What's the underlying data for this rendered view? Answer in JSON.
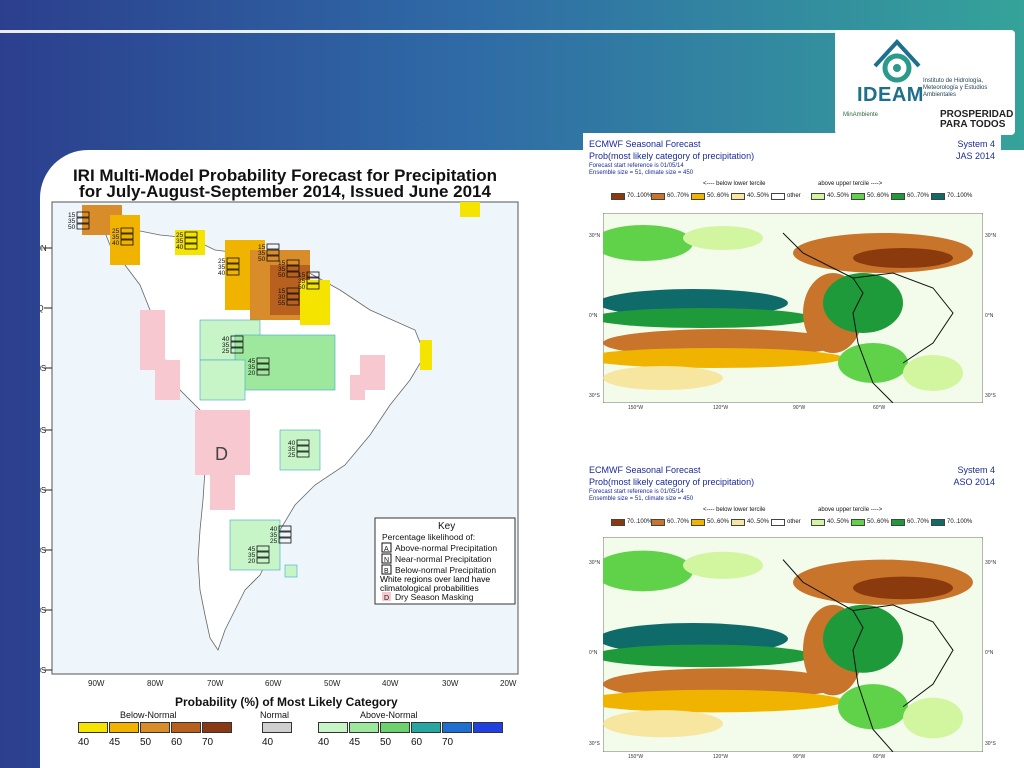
{
  "logo": {
    "name": "IDEAM",
    "institute": "Instituto de Hidrología, Meteorología y Estudios Ambientales",
    "ministry": "MinAmbiente",
    "slogan": "PROSPERIDAD PARA TODOS"
  },
  "iri": {
    "title_line1": "IRI Multi-Model Probability Forecast for Precipitation",
    "title_line2": "for July-August-September 2014, Issued June 2014",
    "lat_labels": [
      "10N",
      "EQ",
      "10S",
      "20S",
      "30S",
      "40S",
      "50S",
      "60S"
    ],
    "lon_labels": [
      "90W",
      "80W",
      "70W",
      "60W",
      "50W",
      "40W",
      "30W",
      "20W"
    ],
    "dry_mask_letter": "D",
    "boxes": [
      [
        "15",
        "35",
        "50"
      ],
      [
        "25",
        "35",
        "40"
      ],
      [
        "25",
        "35",
        "40"
      ],
      [
        "15",
        "35",
        "50"
      ],
      [
        "25",
        "35",
        "40"
      ],
      [
        "15",
        "35",
        "50"
      ],
      [
        "15",
        "35",
        "50"
      ],
      [
        "15",
        "30",
        "55"
      ],
      [
        "40",
        "35",
        "25"
      ],
      [
        "45",
        "35",
        "20"
      ],
      [
        "40",
        "35",
        "25"
      ],
      [
        "40",
        "35",
        "25"
      ],
      [
        "45",
        "35",
        "20"
      ]
    ],
    "key": {
      "title": "Key",
      "subtitle": "Percentage likelihood of:",
      "rows": [
        {
          "letter": "A",
          "label": "Above-normal Precipitation"
        },
        {
          "letter": "N",
          "label": "Near-normal Precipitation"
        },
        {
          "letter": "B",
          "label": "Below-normal Precipitation"
        }
      ],
      "note": "White regions over land have climatological probabilities",
      "dry": {
        "letter": "D",
        "label": "Dry Season Masking"
      }
    },
    "legend": {
      "title": "Probability (%) of Most Likely Category",
      "below_label": "Below-Normal",
      "normal_label": "Normal",
      "above_label": "Above-Normal",
      "below": [
        {
          "value": "40",
          "color": "#f5e400"
        },
        {
          "value": "45",
          "color": "#f0b400"
        },
        {
          "value": "50",
          "color": "#d98c2a"
        },
        {
          "value": "60",
          "color": "#b8601e"
        },
        {
          "value": "70",
          "color": "#8a3a12"
        }
      ],
      "normal": [
        {
          "value": "40",
          "color": "#cfcfcf"
        }
      ],
      "above": [
        {
          "value": "40",
          "color": "#c8f5c8"
        },
        {
          "value": "45",
          "color": "#9ee89e"
        },
        {
          "value": "50",
          "color": "#6dd16d"
        },
        {
          "value": "60",
          "color": "#2aa6a0"
        },
        {
          "value": "70",
          "color": "#1f6fd1"
        },
        {
          "value": "",
          "color": "#2040e0"
        }
      ]
    }
  },
  "ecmwf": [
    {
      "title": "ECMWF Seasonal Forecast",
      "subtitle": "Prob(most likely category of precipitation)",
      "start": "Forecast start reference is 01/05/14",
      "ensemble": "Ensemble size = 51, climate size = 450",
      "system": "System 4",
      "season": "JAS 2014"
    },
    {
      "title": "ECMWF Seasonal Forecast",
      "subtitle": "Prob(most likely category of precipitation)",
      "start": "Forecast start reference is 01/05/14",
      "ensemble": "Ensemble size = 51, climate size = 450",
      "system": "System 4",
      "season": "ASO 2014"
    }
  ],
  "ecmwf_key": {
    "below_text": "<---- below lower tercile",
    "above_text": "above upper tercile ---->",
    "bins": [
      {
        "label": "70..100%",
        "color": "#8b3a0e"
      },
      {
        "label": "60..70%",
        "color": "#c8742a"
      },
      {
        "label": "50..60%",
        "color": "#f0b400"
      },
      {
        "label": "40..50%",
        "color": "#f7e6a0"
      },
      {
        "label": "other",
        "color": "#ffffff"
      },
      {
        "label": "40..50%",
        "color": "#d2f5a0"
      },
      {
        "label": "50..60%",
        "color": "#5fd24a"
      },
      {
        "label": "60..70%",
        "color": "#1e9a3a"
      },
      {
        "label": "70..100%",
        "color": "#0f6a6a"
      }
    ],
    "lon_labels": [
      "150°W",
      "120°W",
      "90°W",
      "60°W"
    ],
    "lat_labels": [
      "30°N",
      "0°N",
      "30°S"
    ]
  }
}
